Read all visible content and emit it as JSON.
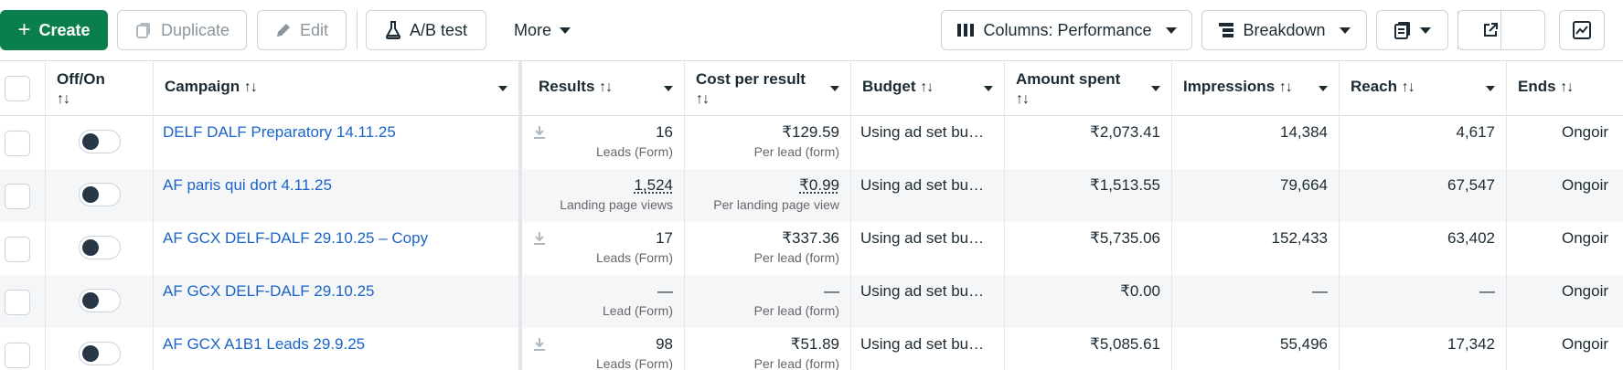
{
  "toolbar": {
    "create_label": "Create",
    "duplicate_label": "Duplicate",
    "edit_label": "Edit",
    "ab_test_label": "A/B test",
    "more_label": "More",
    "columns_label": "Columns: Performance",
    "breakdown_label": "Breakdown"
  },
  "table": {
    "headers": {
      "off_on": "Off/On",
      "campaign": "Campaign",
      "results": "Results",
      "cost_per_result": "Cost per result",
      "budget": "Budget",
      "amount_spent": "Amount spent",
      "impressions": "Impressions",
      "reach": "Reach",
      "ends": "Ends"
    },
    "sort_glyph": "↑↓",
    "rows": [
      {
        "campaign": "DELF DALF Preparatory 14.11.25",
        "results": "16",
        "results_sub": "Leads (Form)",
        "cost": "₹129.59",
        "cost_sub": "Per lead (form)",
        "budget": "Using ad set bu…",
        "spent": "₹2,073.41",
        "impressions": "14,384",
        "reach": "4,617",
        "ends": "Ongoir"
      },
      {
        "campaign": "AF paris qui dort 4.11.25",
        "results": "1,524",
        "results_sub": "Landing page views",
        "cost": "₹0.99",
        "cost_sub": "Per landing page view",
        "budget": "Using ad set bu…",
        "spent": "₹1,513.55",
        "impressions": "79,664",
        "reach": "67,547",
        "ends": "Ongoir"
      },
      {
        "campaign": "AF GCX DELF-DALF 29.10.25 – Copy",
        "results": "17",
        "results_sub": "Leads (Form)",
        "cost": "₹337.36",
        "cost_sub": "Per lead (form)",
        "budget": "Using ad set bu…",
        "spent": "₹5,735.06",
        "impressions": "152,433",
        "reach": "63,402",
        "ends": "Ongoir"
      },
      {
        "campaign": "AF GCX DELF-DALF 29.10.25",
        "results": "—",
        "results_sub": "Lead (Form)",
        "cost": "—",
        "cost_sub": "Per lead (form)",
        "budget": "Using ad set bu…",
        "spent": "₹0.00",
        "impressions": "—",
        "reach": "—",
        "ends": "Ongoir"
      },
      {
        "campaign": "AF GCX A1B1 Leads 29.9.25",
        "results": "98",
        "results_sub": "Leads (Form)",
        "cost": "₹51.89",
        "cost_sub": "Per lead (form)",
        "budget": "Using ad set bu…",
        "spent": "₹5,085.61",
        "impressions": "55,496",
        "reach": "17,342",
        "ends": "Ongoir"
      }
    ]
  },
  "colors": {
    "primary": "#0a7e4c",
    "link": "#1a64c8",
    "alt_row": "#f5f6f7"
  }
}
